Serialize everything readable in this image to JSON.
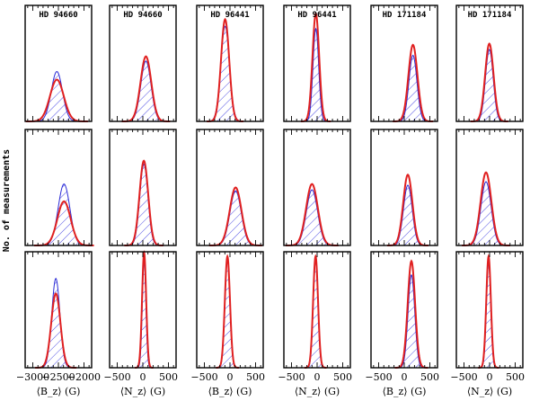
{
  "chart_data": {
    "type": "histogram-grid",
    "ylabel": "No. of measurements",
    "x_scales": [
      {
        "ticks": [
          -3000,
          -2500,
          -2000
        ]
      },
      {
        "ticks": [
          -500,
          0,
          500
        ]
      },
      {
        "ticks": [
          -500,
          0,
          500
        ]
      },
      {
        "ticks": [
          -500,
          0,
          500
        ]
      },
      {
        "ticks": [
          -500,
          0,
          500
        ]
      },
      {
        "ticks": [
          -500,
          0,
          500
        ]
      }
    ],
    "columns": [
      {
        "title": "HD 94660",
        "quantity": "B",
        "xlabel": "⟨B_z⟩ (G)"
      },
      {
        "title": "HD 94660",
        "quantity": "N",
        "xlabel": "⟨N_z⟩ (G)"
      },
      {
        "title": "HD 96441",
        "quantity": "B",
        "xlabel": "⟨B_z⟩ (G)"
      },
      {
        "title": "HD 96441",
        "quantity": "N",
        "xlabel": "⟨N_z⟩ (G)"
      },
      {
        "title": "HD 171184",
        "quantity": "B",
        "xlabel": "⟨B_z⟩ (G)"
      },
      {
        "title": "HD 171184",
        "quantity": "N",
        "xlabel": "⟨N_z⟩ (G)"
      }
    ],
    "panels": [
      [
        {
          "mean": -2530,
          "hist_sigma": 110,
          "hist_peak": 0.43,
          "fit_sigma": 135,
          "fit_peak": 0.36
        },
        {
          "mean": 60,
          "hist_sigma": 100,
          "hist_peak": 0.52,
          "fit_sigma": 105,
          "fit_peak": 0.56
        },
        {
          "mean": -95,
          "hist_sigma": 85,
          "hist_peak": 0.82,
          "fit_sigma": 80,
          "fit_peak": 0.88
        },
        {
          "mean": -25,
          "hist_sigma": 55,
          "hist_peak": 0.8,
          "fit_sigma": 65,
          "fit_peak": 0.93
        },
        {
          "mean": 170,
          "hist_sigma": 78,
          "hist_peak": 0.57,
          "fit_sigma": 88,
          "fit_peak": 0.66
        },
        {
          "mean": -5,
          "hist_sigma": 75,
          "hist_peak": 0.62,
          "fit_sigma": 82,
          "fit_peak": 0.67
        }
      ],
      [
        {
          "mean": -2390,
          "hist_sigma": 115,
          "hist_peak": 0.53,
          "fit_sigma": 130,
          "fit_peak": 0.38
        },
        {
          "mean": 20,
          "hist_sigma": 80,
          "hist_peak": 0.7,
          "fit_sigma": 85,
          "fit_peak": 0.73
        },
        {
          "mean": 110,
          "hist_sigma": 110,
          "hist_peak": 0.47,
          "fit_sigma": 115,
          "fit_peak": 0.5
        },
        {
          "mean": -100,
          "hist_sigma": 110,
          "hist_peak": 0.48,
          "fit_sigma": 115,
          "fit_peak": 0.53
        },
        {
          "mean": 70,
          "hist_sigma": 85,
          "hist_peak": 0.52,
          "fit_sigma": 90,
          "fit_peak": 0.61
        },
        {
          "mean": -70,
          "hist_sigma": 100,
          "hist_peak": 0.55,
          "fit_sigma": 105,
          "fit_peak": 0.63
        }
      ],
      [
        {
          "mean": -2550,
          "hist_sigma": 80,
          "hist_peak": 0.77,
          "fit_sigma": 90,
          "fit_peak": 0.64
        },
        {
          "mean": 25,
          "hist_sigma": 35,
          "hist_peak": 0.92,
          "fit_sigma": 40,
          "fit_peak": 0.99
        },
        {
          "mean": -50,
          "hist_sigma": 48,
          "hist_peak": 0.93,
          "fit_sigma": 50,
          "fit_peak": 0.96
        },
        {
          "mean": -30,
          "hist_sigma": 45,
          "hist_peak": 0.92,
          "fit_sigma": 48,
          "fit_peak": 0.96
        },
        {
          "mean": 140,
          "hist_sigma": 65,
          "hist_peak": 0.8,
          "fit_sigma": 72,
          "fit_peak": 0.92
        },
        {
          "mean": -20,
          "hist_sigma": 42,
          "hist_peak": 0.9,
          "fit_sigma": 45,
          "fit_peak": 0.96
        }
      ]
    ]
  }
}
